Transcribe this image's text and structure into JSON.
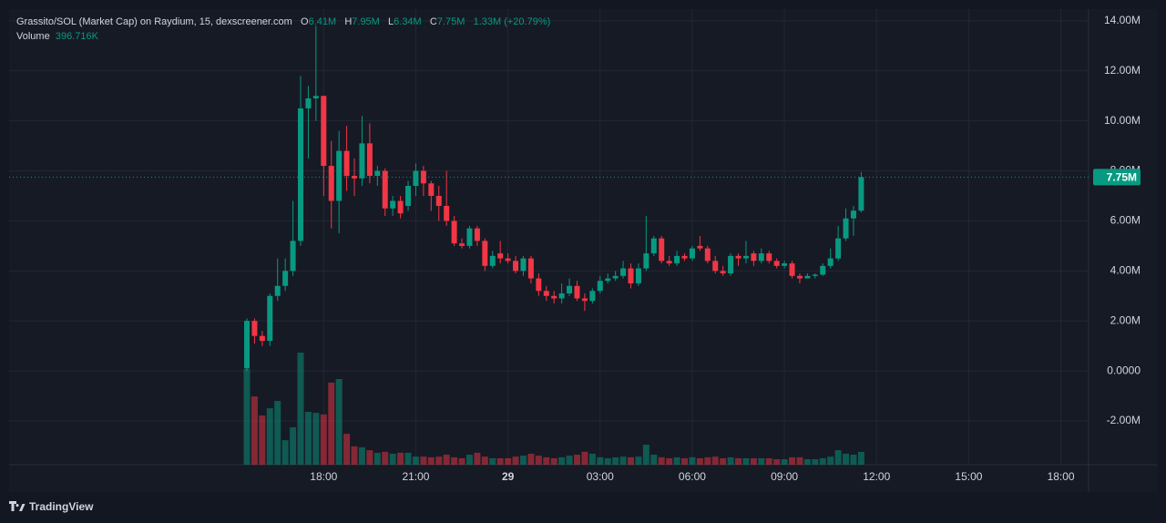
{
  "chart_data": {
    "type": "candlestick",
    "legend": {
      "title": "Grassito/SOL (Market Cap) on Raydium, 15, dexscreener.com",
      "open_label": "O",
      "open": "6.41M",
      "high_label": "H",
      "high": "7.95M",
      "low_label": "L",
      "low": "6.34M",
      "close_label": "C",
      "close": "7.75M",
      "change": "1.33M (+20.79%)",
      "volume_label": "Volume",
      "volume": "396.716K"
    },
    "categories": [
      null,
      null,
      null,
      null,
      null,
      null,
      null,
      null,
      null,
      null,
      "18:00",
      null,
      null,
      null,
      null,
      null,
      null,
      null,
      null,
      null,
      null,
      null,
      "21:00",
      null,
      null,
      null,
      null,
      null,
      null,
      null,
      null,
      null,
      null,
      null,
      "29",
      null,
      null,
      null,
      null,
      null,
      null,
      null,
      null,
      null,
      null,
      null,
      "03:00",
      null,
      null,
      null,
      null,
      null,
      null,
      null,
      null,
      null,
      null,
      null,
      "06:00",
      null,
      null,
      null,
      null,
      null,
      null,
      null,
      null,
      null,
      null,
      null,
      "09:00",
      null,
      null,
      null,
      null,
      null,
      null,
      null,
      null,
      null,
      null,
      null,
      "12:00",
      null,
      null,
      null,
      null,
      null,
      null,
      null,
      null,
      null,
      null,
      null,
      "15:00",
      null,
      null,
      null,
      null,
      null,
      null,
      null,
      null,
      null,
      null,
      null,
      "18:00",
      null,
      null,
      null
    ],
    "open": [
      0.1,
      2.0,
      1.4,
      1.2,
      3.0,
      3.4,
      4.0,
      5.2,
      10.5,
      10.9,
      11.0,
      8.2,
      6.8,
      8.8,
      7.8,
      7.7,
      9.1,
      7.8,
      8.0,
      6.5,
      6.8,
      6.6,
      7.4,
      8.0,
      7.5,
      7.0,
      6.6,
      6.0,
      5.1,
      5.0,
      5.7,
      5.2,
      4.2,
      4.7,
      4.5,
      4.4,
      4.0,
      4.5,
      3.7,
      3.2,
      3.0,
      2.9,
      3.1,
      3.4,
      2.9,
      2.8,
      3.2,
      3.6,
      3.7,
      3.8,
      4.1,
      3.5,
      4.1,
      4.7,
      5.3,
      4.4,
      4.3,
      4.6,
      4.5,
      5.0,
      4.9,
      4.4,
      4.0,
      3.9,
      4.6,
      4.5,
      4.7,
      4.4,
      4.7,
      4.4,
      4.2,
      4.3,
      3.8,
      3.7,
      3.8,
      3.85,
      4.2,
      4.5,
      5.3,
      6.1,
      6.41,
      null,
      null,
      null,
      null,
      null,
      null,
      null,
      null,
      null,
      null,
      null,
      null,
      null,
      null,
      null,
      null,
      null,
      null,
      null,
      null,
      null,
      null,
      null,
      null,
      null,
      null,
      null,
      null,
      null
    ],
    "high": [
      2.1,
      2.1,
      1.6,
      3.1,
      4.5,
      4.5,
      6.8,
      11.8,
      11.4,
      13.8,
      11.0,
      9.2,
      9.6,
      9.8,
      8.5,
      10.2,
      9.9,
      8.2,
      8.1,
      7.0,
      7.0,
      7.6,
      8.3,
      8.2,
      7.6,
      7.4,
      8.0,
      6.2,
      5.3,
      5.8,
      5.8,
      5.3,
      4.8,
      5.2,
      4.7,
      4.6,
      4.6,
      4.6,
      3.9,
      3.4,
      3.2,
      3.5,
      3.7,
      3.6,
      3.1,
      3.3,
      3.8,
      3.9,
      4.0,
      4.4,
      4.3,
      4.3,
      6.2,
      5.4,
      5.4,
      4.6,
      4.8,
      4.7,
      5.0,
      5.4,
      5.0,
      4.6,
      4.2,
      4.7,
      4.7,
      5.2,
      4.8,
      4.9,
      4.8,
      4.5,
      4.4,
      4.4,
      3.9,
      3.9,
      3.9,
      4.3,
      4.9,
      5.8,
      6.5,
      6.6,
      7.95,
      null,
      null,
      null,
      null,
      null,
      null,
      null,
      null,
      null,
      null,
      null,
      null,
      null,
      null,
      null,
      null,
      null,
      null,
      null,
      null,
      null,
      null,
      null,
      null,
      null,
      null,
      null,
      null,
      null
    ],
    "low": [
      0.0,
      1.1,
      1.0,
      1.0,
      2.8,
      3.2,
      3.8,
      5.0,
      8.5,
      10.0,
      7.0,
      5.7,
      5.5,
      7.2,
      7.0,
      7.4,
      7.5,
      7.4,
      6.2,
      6.2,
      6.1,
      6.4,
      7.0,
      7.0,
      6.4,
      6.0,
      5.8,
      5.0,
      4.9,
      4.9,
      5.0,
      4.0,
      4.1,
      4.3,
      4.3,
      3.9,
      3.8,
      3.5,
      3.0,
      2.8,
      2.7,
      2.7,
      3.0,
      2.8,
      2.4,
      2.7,
      3.1,
      3.5,
      3.6,
      3.7,
      3.3,
      3.4,
      4.0,
      4.6,
      4.3,
      4.2,
      4.2,
      4.4,
      4.4,
      4.8,
      4.3,
      3.9,
      3.8,
      3.8,
      4.2,
      4.3,
      4.2,
      4.3,
      4.3,
      4.1,
      4.1,
      3.7,
      3.5,
      3.7,
      3.7,
      3.8,
      4.1,
      4.4,
      5.2,
      5.4,
      6.34,
      null,
      null,
      null,
      null,
      null,
      null,
      null,
      null,
      null,
      null,
      null,
      null,
      null,
      null,
      null,
      null,
      null,
      null,
      null,
      null,
      null,
      null,
      null,
      null,
      null,
      null,
      null,
      null,
      null
    ],
    "close": [
      2.0,
      1.4,
      1.2,
      3.0,
      3.4,
      4.0,
      5.2,
      10.5,
      10.9,
      11.0,
      8.2,
      6.8,
      8.8,
      7.8,
      7.7,
      9.1,
      7.8,
      8.0,
      6.5,
      6.8,
      6.3,
      7.4,
      8.0,
      7.5,
      7.0,
      6.6,
      6.0,
      5.1,
      5.0,
      5.7,
      5.2,
      4.2,
      4.6,
      4.5,
      4.4,
      4.0,
      4.5,
      3.7,
      3.2,
      3.0,
      2.9,
      3.1,
      3.4,
      2.9,
      2.8,
      3.2,
      3.6,
      3.7,
      3.8,
      4.1,
      3.5,
      4.1,
      4.7,
      5.3,
      4.4,
      4.3,
      4.6,
      4.5,
      4.9,
      4.9,
      4.4,
      4.0,
      3.9,
      4.6,
      4.5,
      4.6,
      4.4,
      4.7,
      4.4,
      4.2,
      4.3,
      3.8,
      3.7,
      3.8,
      3.85,
      4.2,
      4.5,
      5.3,
      6.1,
      6.41,
      7.75,
      null,
      null,
      null,
      null,
      null,
      null,
      null,
      null,
      null,
      null,
      null,
      null,
      null,
      null,
      null,
      null,
      null,
      null,
      null,
      null,
      null,
      null,
      null,
      null,
      null,
      null,
      null,
      null,
      null
    ],
    "volume": [
      2970,
      2120,
      1530,
      1750,
      1980,
      760,
      1160,
      3480,
      1640,
      1610,
      1560,
      2550,
      2660,
      960,
      570,
      540,
      450,
      370,
      400,
      340,
      370,
      370,
      250,
      250,
      230,
      250,
      310,
      230,
      200,
      310,
      370,
      250,
      200,
      200,
      200,
      250,
      280,
      340,
      280,
      230,
      200,
      230,
      280,
      310,
      400,
      340,
      230,
      200,
      230,
      250,
      230,
      250,
      620,
      310,
      230,
      200,
      230,
      200,
      230,
      200,
      230,
      250,
      200,
      230,
      200,
      200,
      200,
      200,
      200,
      170,
      170,
      230,
      230,
      170,
      170,
      200,
      250,
      450,
      340,
      310,
      396.716,
      null,
      null,
      null,
      null,
      null,
      null,
      null,
      null,
      null,
      null,
      null,
      null,
      null,
      null,
      null,
      null,
      null,
      null,
      null,
      null,
      null,
      null,
      null,
      null,
      null,
      null,
      null,
      null,
      null
    ],
    "up_color": "#089981",
    "down_color": "#f23645",
    "ylim": [
      -3.75,
      14.47
    ],
    "yticks": [
      {
        "value": 14,
        "label": "14.00M"
      },
      {
        "value": 12,
        "label": "12.00M"
      },
      {
        "value": 10,
        "label": "10.00M"
      },
      {
        "value": 8,
        "label": "8.00M"
      },
      {
        "value": 6,
        "label": "6.00M"
      },
      {
        "value": 4,
        "label": "4.00M"
      },
      {
        "value": 2,
        "label": "2.00M"
      },
      {
        "value": 0,
        "label": "0.0000"
      },
      {
        "value": -2,
        "label": "-2.00M"
      }
    ],
    "volume_ylim": [
      0,
      4330
    ],
    "last_price": {
      "value": 7.75,
      "label": "7.75M"
    },
    "grid": true,
    "watermark": "TradingView"
  }
}
